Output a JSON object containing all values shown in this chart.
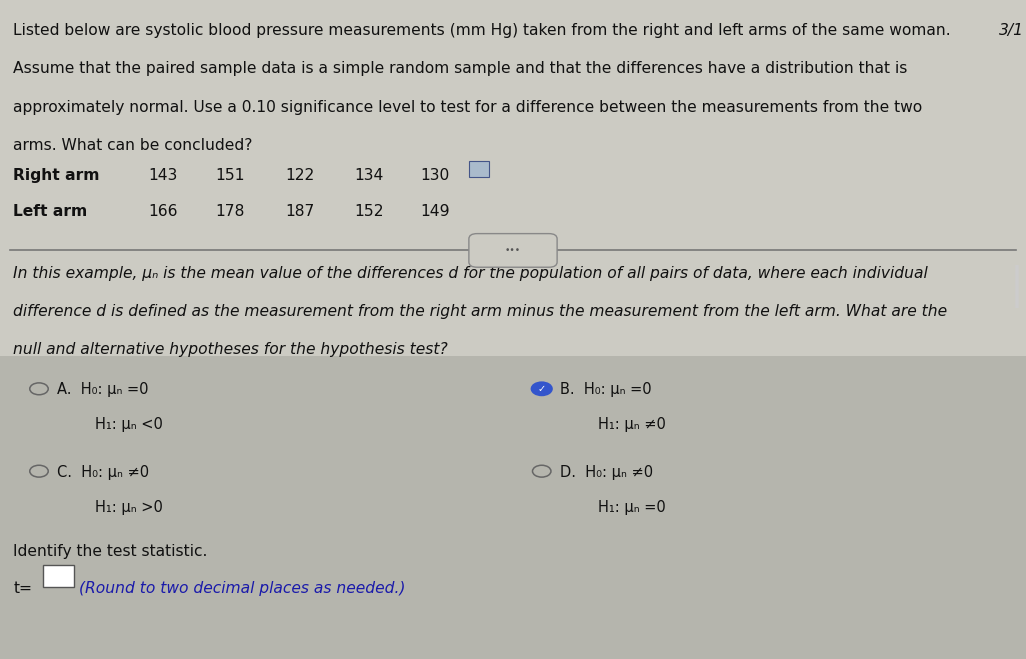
{
  "bg_color_top": "#d8d5cc",
  "bg_color_bottom": "#b8b8b0",
  "bg_color": "#c4c2ba",
  "text_color": "#111111",
  "blue_text": "#1a1aaa",
  "title_text_line1": "Listed below are systolic blood pressure measurements (mm Hg) taken from the right and left arms of the same woman.",
  "title_text_line2": "Assume that the paired sample data is a simple random sample and that the differences have a distribution that is",
  "title_text_line3": "approximately normal. Use a 0.10 significance level to test for a difference between the measurements from the two",
  "title_text_line4": "arms. What can be concluded?",
  "right_arm_label": "Right arm",
  "left_arm_label": "Left arm",
  "right_arm_values": [
    "143",
    "151",
    "122",
    "134",
    "130"
  ],
  "left_arm_values": [
    "166",
    "178",
    "187",
    "152",
    "149"
  ],
  "section2_line1": "In this example, μₙ is the mean value of the differences d for the population of all pairs of data, where each individual",
  "section2_line2": "difference d is defined as the measurement from the right arm minus the measurement from the left arm. What are the",
  "section2_line3": "null and alternative hypotheses for the hypothesis test?",
  "option_A_line1": "H₀: μₙ =0",
  "option_A_line2": "H₁: μₙ <0",
  "option_B_line1": "H₀: μₙ =0",
  "option_B_line2": "H₁: μₙ ≠0",
  "option_C_line1": "H₀: μₙ ≠0",
  "option_C_line2": "H₁: μₙ >0",
  "option_D_line1": "H₀: μₙ ≠0",
  "option_D_line2": "H₁: μₙ =0",
  "identify_text": "Identify the test statistic.",
  "t_label": "t=",
  "round_text": "(Round to two decimal places as needed.)",
  "page_num": "3/1",
  "font_size_body": 11.2,
  "font_size_options": 10.5
}
